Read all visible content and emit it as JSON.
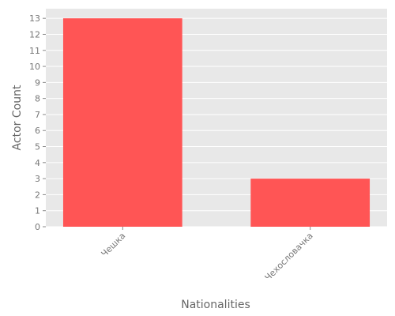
{
  "chart_data": {
    "type": "bar",
    "x_label": "Nationalities",
    "y_label": "Actor Count",
    "categories": [
      "Чешка",
      "Чехословачка"
    ],
    "values": [
      13,
      3
    ],
    "color": "#ff5555",
    "ylim": [
      0,
      13.6
    ],
    "yticks": [
      0,
      1,
      2,
      3,
      4,
      5,
      6,
      7,
      8,
      9,
      10,
      11,
      12,
      13
    ],
    "grid": true
  }
}
